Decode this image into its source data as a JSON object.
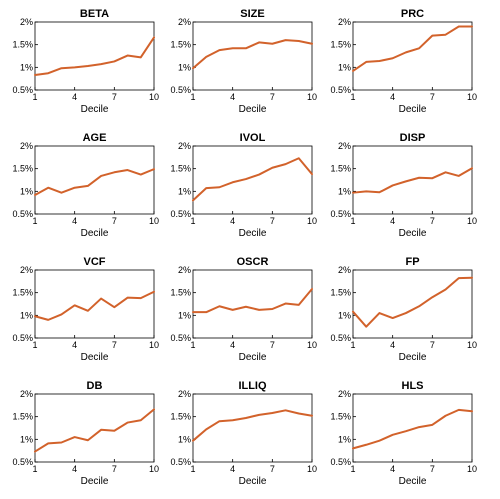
{
  "chart_data": [
    {
      "type": "line",
      "title": "BETA",
      "xlabel": "Decile",
      "x": [
        1,
        2,
        3,
        4,
        5,
        6,
        7,
        8,
        9,
        10
      ],
      "values": [
        0.83,
        0.87,
        0.98,
        1.0,
        1.03,
        1.07,
        1.13,
        1.26,
        1.22,
        1.66
      ],
      "xticks": [
        "1",
        "4",
        "7",
        "10"
      ],
      "yticks": [
        "0.5%",
        "1%",
        "1.5%",
        "2%"
      ],
      "ylim": [
        0.5,
        2.0
      ],
      "xlim": [
        1,
        10
      ]
    },
    {
      "type": "line",
      "title": "SIZE",
      "xlabel": "Decile",
      "x": [
        1,
        2,
        3,
        4,
        5,
        6,
        7,
        8,
        9,
        10
      ],
      "values": [
        0.98,
        1.23,
        1.38,
        1.42,
        1.42,
        1.55,
        1.52,
        1.6,
        1.58,
        1.52
      ],
      "xticks": [
        "1",
        "4",
        "7",
        "10"
      ],
      "yticks": [
        "0.5%",
        "1%",
        "1.5%",
        "2%"
      ],
      "ylim": [
        0.5,
        2.0
      ],
      "xlim": [
        1,
        10
      ]
    },
    {
      "type": "line",
      "title": "PRC",
      "xlabel": "Decile",
      "x": [
        1,
        2,
        3,
        4,
        5,
        6,
        7,
        8,
        9,
        10
      ],
      "values": [
        0.92,
        1.12,
        1.14,
        1.2,
        1.33,
        1.42,
        1.7,
        1.72,
        1.9,
        1.9
      ],
      "xticks": [
        "1",
        "4",
        "7",
        "10"
      ],
      "yticks": [
        "0.5%",
        "1%",
        "1.5%",
        "2%"
      ],
      "ylim": [
        0.5,
        2.0
      ],
      "xlim": [
        1,
        10
      ]
    },
    {
      "type": "line",
      "title": "AGE",
      "xlabel": "Decile",
      "x": [
        1,
        2,
        3,
        4,
        5,
        6,
        7,
        8,
        9,
        10
      ],
      "values": [
        0.92,
        1.08,
        0.97,
        1.08,
        1.12,
        1.34,
        1.42,
        1.47,
        1.37,
        1.49
      ],
      "xticks": [
        "1",
        "4",
        "7",
        "10"
      ],
      "yticks": [
        "0.5%",
        "1%",
        "1.5%",
        "2%"
      ],
      "ylim": [
        0.5,
        2.0
      ],
      "xlim": [
        1,
        10
      ]
    },
    {
      "type": "line",
      "title": "IVOL",
      "xlabel": "Decile",
      "x": [
        1,
        2,
        3,
        4,
        5,
        6,
        7,
        8,
        9,
        10
      ],
      "values": [
        0.8,
        1.07,
        1.09,
        1.2,
        1.27,
        1.37,
        1.52,
        1.6,
        1.73,
        1.38
      ],
      "xticks": [
        "1",
        "4",
        "7",
        "10"
      ],
      "yticks": [
        "0.5%",
        "1%",
        "1.5%",
        "2%"
      ],
      "ylim": [
        0.5,
        2.0
      ],
      "xlim": [
        1,
        10
      ]
    },
    {
      "type": "line",
      "title": "DISP",
      "xlabel": "Decile",
      "x": [
        1,
        2,
        3,
        4,
        5,
        6,
        7,
        8,
        9,
        10
      ],
      "values": [
        0.97,
        1.0,
        0.98,
        1.13,
        1.22,
        1.3,
        1.29,
        1.42,
        1.34,
        1.51
      ],
      "xticks": [
        "1",
        "4",
        "7",
        "10"
      ],
      "yticks": [
        "0.5%",
        "1%",
        "1.5%",
        "2%"
      ],
      "ylim": [
        0.5,
        2.0
      ],
      "xlim": [
        1,
        10
      ]
    },
    {
      "type": "line",
      "title": "VCF",
      "xlabel": "Decile",
      "x": [
        1,
        2,
        3,
        4,
        5,
        6,
        7,
        8,
        9,
        10
      ],
      "values": [
        0.98,
        0.9,
        1.02,
        1.22,
        1.1,
        1.37,
        1.18,
        1.39,
        1.38,
        1.52
      ],
      "xticks": [
        "1",
        "4",
        "7",
        "10"
      ],
      "yticks": [
        "0.5%",
        "1%",
        "1.5%",
        "2%"
      ],
      "ylim": [
        0.5,
        2.0
      ],
      "xlim": [
        1,
        10
      ]
    },
    {
      "type": "line",
      "title": "OSCR",
      "xlabel": "Decile",
      "x": [
        1,
        2,
        3,
        4,
        5,
        6,
        7,
        8,
        9,
        10
      ],
      "values": [
        1.07,
        1.07,
        1.2,
        1.12,
        1.19,
        1.12,
        1.14,
        1.26,
        1.23,
        1.58
      ],
      "xticks": [
        "1",
        "4",
        "7",
        "10"
      ],
      "yticks": [
        "0.5%",
        "1%",
        "1.5%",
        "2%"
      ],
      "ylim": [
        0.5,
        2.0
      ],
      "xlim": [
        1,
        10
      ]
    },
    {
      "type": "line",
      "title": "FP",
      "xlabel": "Decile",
      "x": [
        1,
        2,
        3,
        4,
        5,
        6,
        7,
        8,
        9,
        10
      ],
      "values": [
        1.08,
        0.75,
        1.05,
        0.94,
        1.05,
        1.2,
        1.4,
        1.57,
        1.82,
        1.83
      ],
      "xticks": [
        "1",
        "4",
        "7",
        "10"
      ],
      "yticks": [
        "0.5%",
        "1%",
        "1.5%",
        "2%"
      ],
      "ylim": [
        0.5,
        2.0
      ],
      "xlim": [
        1,
        10
      ]
    },
    {
      "type": "line",
      "title": "DB",
      "xlabel": "Decile",
      "x": [
        1,
        2,
        3,
        4,
        5,
        6,
        7,
        8,
        9,
        10
      ],
      "values": [
        0.73,
        0.91,
        0.93,
        1.05,
        0.98,
        1.21,
        1.19,
        1.37,
        1.42,
        1.66
      ],
      "xticks": [
        "1",
        "4",
        "7",
        "10"
      ],
      "yticks": [
        "0.5%",
        "1%",
        "1.5%",
        "2%"
      ],
      "ylim": [
        0.5,
        2.0
      ],
      "xlim": [
        1,
        10
      ]
    },
    {
      "type": "line",
      "title": "ILLIQ",
      "xlabel": "Decile",
      "x": [
        1,
        2,
        3,
        4,
        5,
        6,
        7,
        8,
        9,
        10
      ],
      "values": [
        0.97,
        1.22,
        1.4,
        1.42,
        1.47,
        1.54,
        1.58,
        1.64,
        1.57,
        1.52
      ],
      "xticks": [
        "1",
        "4",
        "7",
        "10"
      ],
      "yticks": [
        "0.5%",
        "1%",
        "1.5%",
        "2%"
      ],
      "ylim": [
        0.5,
        2.0
      ],
      "xlim": [
        1,
        10
      ]
    },
    {
      "type": "line",
      "title": "HLS",
      "xlabel": "Decile",
      "x": [
        1,
        2,
        3,
        4,
        5,
        6,
        7,
        8,
        9,
        10
      ],
      "values": [
        0.8,
        0.88,
        0.97,
        1.1,
        1.18,
        1.27,
        1.32,
        1.52,
        1.65,
        1.62
      ],
      "xticks": [
        "1",
        "4",
        "7",
        "10"
      ],
      "yticks": [
        "0.5%",
        "1%",
        "1.5%",
        "2%"
      ],
      "ylim": [
        0.5,
        2.0
      ],
      "xlim": [
        1,
        10
      ]
    }
  ],
  "style": {
    "line_color": "#d2622b",
    "axis_color": "#000000",
    "background": "#ffffff"
  }
}
